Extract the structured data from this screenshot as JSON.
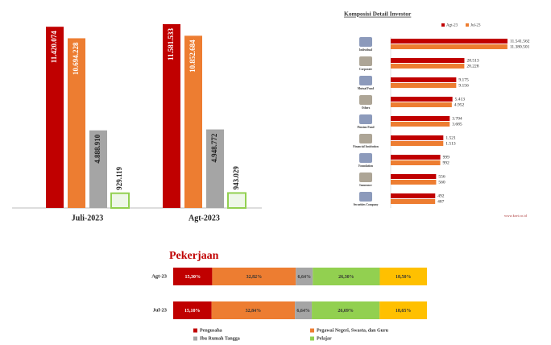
{
  "chart_data": [
    {
      "type": "bar",
      "categories": [
        "Juli-2023",
        "Agt-2023"
      ],
      "series": [
        {
          "color": "#c00000",
          "values": [
            11420074,
            11581533
          ],
          "value_labels": [
            "11.420.074",
            "11.581.533"
          ]
        },
        {
          "color": "#ed7d31",
          "values": [
            10694228,
            10852684
          ],
          "value_labels": [
            "10.694.228",
            "10.852.684"
          ]
        },
        {
          "color": "#a5a5a5",
          "values": [
            4888910,
            4948772
          ],
          "value_labels": [
            "4.888.910",
            "4.948.772"
          ]
        },
        {
          "color": "#92d050",
          "values": [
            929119,
            943029
          ],
          "value_labels": [
            "929.119",
            "943.029"
          ]
        }
      ]
    },
    {
      "type": "hbar",
      "title": "Komposisi Detail Investor",
      "log_scale": true,
      "legend": "top-right",
      "categories": [
        "Individual",
        "Corporate",
        "Mutual Fund",
        "Others",
        "Pension Fund",
        "Financial Institution",
        "Foundation",
        "Insurance",
        "Securities Company"
      ],
      "series": [
        {
          "name": "Agt-23",
          "color": "#c00000",
          "values": [
            11541562,
            28513,
            9175,
            5413,
            3704,
            1521,
            999,
            556,
            492
          ],
          "value_labels": [
            "11.541.562",
            "28.513",
            "9.175",
            "5.413",
            "3.704",
            "1.521",
            "999",
            "556",
            "492"
          ]
        },
        {
          "name": "Jul-23",
          "color": "#ed7d31",
          "values": [
            11380501,
            28228,
            9156,
            4952,
            3685,
            1513,
            992,
            560,
            487
          ],
          "value_labels": [
            "11.380.501",
            "28.228",
            "9.156",
            "4.952",
            "3.685",
            "1.513",
            "992",
            "560",
            "487"
          ]
        }
      ],
      "source": "www.ksei.co.id"
    },
    {
      "type": "stacked_hbar",
      "title": "Pekerjaan",
      "categories": [
        "Agt-23",
        "Jul-23"
      ],
      "series": [
        {
          "name": "Pengusaha",
          "color": "#c00000",
          "values": [
            15.3,
            15.1
          ],
          "value_labels": [
            "15,30%",
            "15,10%"
          ]
        },
        {
          "name": "Pegawai Negeri, Swasta, dan Guru",
          "color": "#ed7d31",
          "values": [
            32.82,
            32.84
          ],
          "value_labels": [
            "32,82%",
            "32,84%"
          ]
        },
        {
          "name": "Ibu Rumah Tangga",
          "color": "#a5a5a5",
          "values": [
            6.64,
            6.64
          ],
          "value_labels": [
            "6,64%",
            "6,64%"
          ]
        },
        {
          "name": "Pelajar",
          "color": "#92d050",
          "values": [
            26.3,
            26.69
          ],
          "value_labels": [
            "26,30%",
            "26,69%"
          ]
        },
        {
          "color": "#ffc000",
          "values": [
            18.5,
            18.65
          ],
          "value_labels": [
            "18,50%",
            "18,65%"
          ]
        }
      ]
    }
  ]
}
